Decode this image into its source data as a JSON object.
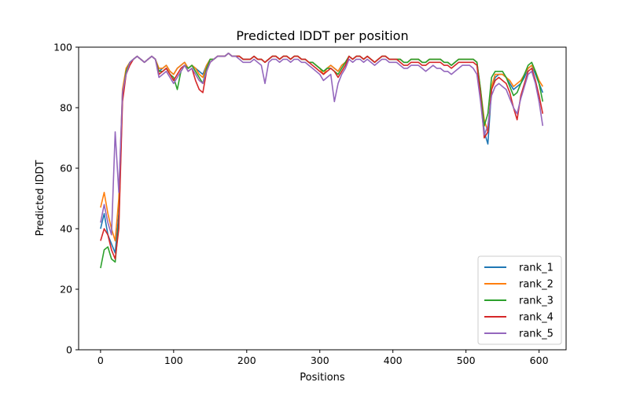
{
  "chart_data": {
    "type": "line",
    "title": "Predicted lDDT per position",
    "xlabel": "Positions",
    "ylabel": "Predicted lDDT",
    "xlim": [
      -30,
      637
    ],
    "ylim": [
      0,
      100
    ],
    "xticks": [
      0,
      100,
      200,
      300,
      400,
      500,
      600
    ],
    "yticks": [
      0,
      20,
      40,
      60,
      80,
      100
    ],
    "grid": false,
    "legend_position": "bottom-right",
    "x": [
      0,
      5,
      10,
      15,
      20,
      25,
      30,
      35,
      40,
      45,
      50,
      55,
      60,
      65,
      70,
      75,
      80,
      85,
      90,
      95,
      100,
      105,
      110,
      115,
      120,
      125,
      130,
      135,
      140,
      145,
      150,
      155,
      160,
      165,
      170,
      175,
      180,
      185,
      190,
      195,
      200,
      205,
      210,
      215,
      220,
      225,
      230,
      235,
      240,
      245,
      250,
      255,
      260,
      265,
      270,
      275,
      280,
      285,
      290,
      295,
      300,
      305,
      310,
      315,
      320,
      325,
      330,
      335,
      340,
      345,
      350,
      355,
      360,
      365,
      370,
      375,
      380,
      385,
      390,
      395,
      400,
      405,
      410,
      415,
      420,
      425,
      430,
      435,
      440,
      445,
      450,
      455,
      460,
      465,
      470,
      475,
      480,
      485,
      490,
      495,
      500,
      505,
      510,
      515,
      520,
      525,
      530,
      535,
      540,
      545,
      550,
      555,
      560,
      565,
      570,
      575,
      580,
      585,
      590,
      595,
      600,
      605
    ],
    "series": [
      {
        "name": "rank_1",
        "color": "#1f77b4",
        "values": [
          40,
          45,
          38,
          35,
          32,
          45,
          85,
          92,
          95,
          96,
          97,
          96,
          95,
          96,
          97,
          96,
          92,
          93,
          94,
          92,
          91,
          93,
          94,
          95,
          93,
          94,
          93,
          92,
          91,
          94,
          96,
          96,
          97,
          97,
          97,
          98,
          97,
          97,
          97,
          96,
          96,
          96,
          97,
          96,
          96,
          95,
          96,
          97,
          97,
          96,
          97,
          97,
          96,
          97,
          97,
          96,
          96,
          95,
          95,
          94,
          93,
          92,
          93,
          94,
          93,
          92,
          94,
          95,
          97,
          96,
          97,
          97,
          96,
          97,
          96,
          95,
          96,
          97,
          97,
          96,
          96,
          96,
          96,
          95,
          95,
          96,
          96,
          96,
          95,
          95,
          96,
          96,
          96,
          96,
          95,
          95,
          94,
          95,
          96,
          96,
          96,
          96,
          96,
          95,
          85,
          72,
          68,
          86,
          90,
          91,
          91,
          90,
          88,
          86,
          87,
          88,
          90,
          93,
          94,
          91,
          88,
          85
        ]
      },
      {
        "name": "rank_2",
        "color": "#ff7f0e",
        "values": [
          47,
          52,
          45,
          40,
          36,
          50,
          86,
          93,
          95,
          96,
          97,
          96,
          95,
          96,
          97,
          96,
          93,
          93,
          94,
          92,
          91,
          93,
          94,
          95,
          93,
          94,
          93,
          91,
          90,
          94,
          96,
          96,
          97,
          97,
          97,
          98,
          97,
          97,
          97,
          96,
          96,
          96,
          97,
          96,
          96,
          95,
          96,
          97,
          97,
          96,
          97,
          97,
          96,
          97,
          97,
          96,
          96,
          95,
          95,
          94,
          93,
          91,
          93,
          94,
          93,
          92,
          94,
          95,
          97,
          96,
          97,
          97,
          96,
          97,
          96,
          95,
          96,
          97,
          97,
          96,
          96,
          96,
          96,
          95,
          95,
          96,
          96,
          96,
          95,
          95,
          96,
          96,
          96,
          96,
          95,
          95,
          94,
          95,
          96,
          96,
          96,
          96,
          96,
          95,
          86,
          76,
          72,
          87,
          91,
          91,
          91,
          90,
          89,
          87,
          88,
          89,
          91,
          93,
          94,
          92,
          89,
          87
        ]
      },
      {
        "name": "rank_3",
        "color": "#2ca02c",
        "values": [
          27,
          33,
          34,
          30,
          29,
          42,
          84,
          92,
          95,
          96,
          97,
          96,
          95,
          96,
          97,
          96,
          92,
          92,
          93,
          91,
          90,
          86,
          92,
          94,
          93,
          94,
          92,
          90,
          88,
          93,
          96,
          96,
          97,
          97,
          97,
          98,
          97,
          97,
          97,
          96,
          96,
          96,
          97,
          96,
          96,
          95,
          96,
          97,
          97,
          96,
          97,
          97,
          96,
          97,
          97,
          96,
          96,
          95,
          95,
          94,
          93,
          92,
          93,
          93,
          92,
          91,
          93,
          95,
          97,
          96,
          97,
          97,
          96,
          97,
          96,
          95,
          96,
          97,
          97,
          96,
          96,
          96,
          96,
          95,
          95,
          96,
          96,
          96,
          95,
          95,
          96,
          96,
          96,
          96,
          95,
          95,
          94,
          95,
          96,
          96,
          96,
          96,
          96,
          95,
          86,
          74,
          78,
          90,
          92,
          92,
          92,
          90,
          87,
          84,
          85,
          88,
          91,
          94,
          95,
          92,
          88,
          82
        ]
      },
      {
        "name": "rank_4",
        "color": "#d62728",
        "values": [
          36,
          40,
          38,
          33,
          30,
          40,
          82,
          91,
          94,
          96,
          97,
          96,
          95,
          96,
          97,
          96,
          91,
          92,
          93,
          91,
          89,
          91,
          93,
          94,
          92,
          93,
          89,
          86,
          85,
          92,
          95,
          96,
          97,
          97,
          97,
          98,
          97,
          97,
          97,
          96,
          96,
          96,
          97,
          96,
          96,
          95,
          96,
          97,
          97,
          96,
          97,
          97,
          96,
          97,
          97,
          96,
          96,
          95,
          94,
          93,
          92,
          91,
          92,
          93,
          92,
          90,
          92,
          94,
          97,
          96,
          97,
          97,
          96,
          97,
          96,
          95,
          96,
          97,
          97,
          96,
          96,
          96,
          95,
          94,
          94,
          95,
          95,
          95,
          94,
          94,
          95,
          95,
          95,
          95,
          94,
          94,
          93,
          94,
          95,
          95,
          95,
          95,
          95,
          94,
          84,
          70,
          72,
          86,
          89,
          90,
          89,
          88,
          85,
          80,
          76,
          84,
          88,
          92,
          93,
          89,
          84,
          78
        ]
      },
      {
        "name": "rank_5",
        "color": "#9467bd",
        "values": [
          42,
          48,
          42,
          38,
          72,
          52,
          85,
          91,
          95,
          96,
          97,
          96,
          95,
          96,
          97,
          96,
          90,
          91,
          92,
          90,
          88,
          90,
          92,
          94,
          92,
          93,
          91,
          89,
          88,
          92,
          95,
          96,
          97,
          97,
          97,
          98,
          97,
          97,
          96,
          95,
          95,
          95,
          96,
          95,
          94,
          88,
          95,
          96,
          96,
          95,
          96,
          96,
          95,
          96,
          96,
          95,
          95,
          94,
          93,
          92,
          91,
          89,
          90,
          91,
          82,
          88,
          91,
          93,
          96,
          95,
          96,
          96,
          95,
          96,
          95,
          94,
          95,
          96,
          96,
          95,
          95,
          95,
          94,
          93,
          93,
          94,
          94,
          94,
          93,
          92,
          93,
          94,
          93,
          93,
          92,
          92,
          91,
          92,
          93,
          94,
          94,
          94,
          93,
          91,
          82,
          71,
          74,
          84,
          87,
          88,
          87,
          86,
          83,
          80,
          78,
          83,
          87,
          91,
          92,
          88,
          82,
          74
        ]
      }
    ]
  }
}
